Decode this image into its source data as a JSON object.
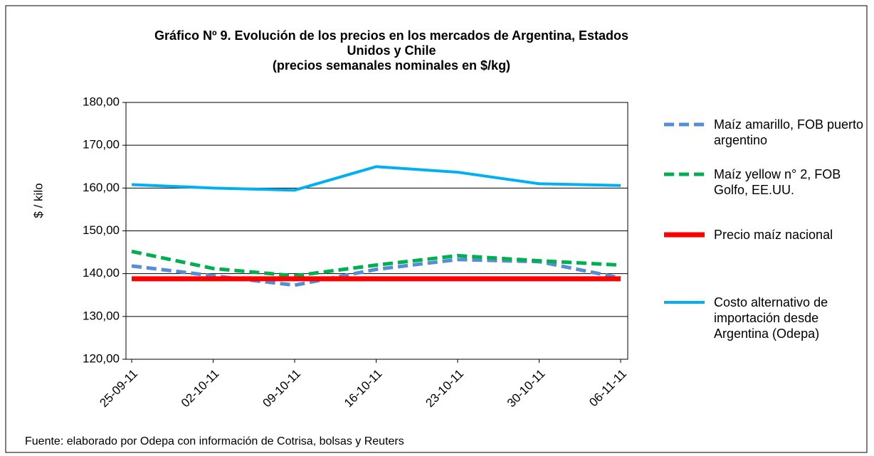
{
  "chart_data": {
    "type": "line",
    "title": "Gráfico Nº 9. Evolución de los precios en los mercados de Argentina, Estados Unidos y  Chile",
    "subtitle": "(precios semanales nominales en $/kg)",
    "y_label": "$ / kilo",
    "note": "Fuente: elaborado por Odepa con información de Cotrisa, bolsas y Reuters",
    "categories": [
      "25-09-11",
      "02-10-11",
      "09-10-11",
      "16-10-11",
      "23-10-11",
      "30-10-11",
      "06-11-11"
    ],
    "series": [
      {
        "name": "Maíz amarillo, FOB puerto argentino",
        "color": "#558ed5",
        "dashed": true,
        "values": [
          141.8,
          139.5,
          137.3,
          141.0,
          143.3,
          142.8,
          139.0
        ]
      },
      {
        "name": "Maíz yellow n° 2, FOB Golfo, EE.UU.",
        "color": "#00b050",
        "dashed": true,
        "values": [
          145.2,
          141.2,
          139.5,
          142.0,
          144.2,
          143.0,
          142.0
        ]
      },
      {
        "name": "Precio maíz nacional",
        "color": "#ff0000",
        "dashed": false,
        "values": [
          138.8,
          138.8,
          138.8,
          138.8,
          138.8,
          138.8,
          138.8
        ]
      },
      {
        "name": "Costo alternativo de importación desde Argentina (Odepa)",
        "color": "#00b0f0",
        "dashed": false,
        "values": [
          160.8,
          160.0,
          159.5,
          165.0,
          163.7,
          161.0,
          160.6
        ]
      }
    ],
    "ylim": [
      120,
      180
    ],
    "yticks": [
      {
        "value": 120,
        "label": "120,00"
      },
      {
        "value": 130,
        "label": "130,00"
      },
      {
        "value": 140,
        "label": "140,00"
      },
      {
        "value": 150,
        "label": "150,00"
      },
      {
        "value": 160,
        "label": "160,00"
      },
      {
        "value": 170,
        "label": "170,00"
      },
      {
        "value": 180,
        "label": "180,00"
      }
    ],
    "grid": true
  }
}
